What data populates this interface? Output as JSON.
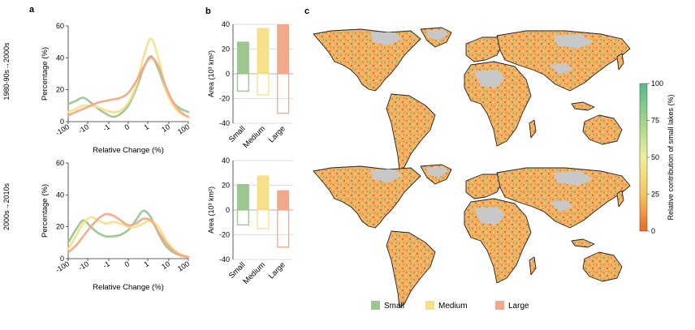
{
  "panel_labels": {
    "a": "a",
    "b": "b",
    "c": "c"
  },
  "colors": {
    "Small": "#9cc58f",
    "Medium": "#f7e08a",
    "Large": "#f2a98a",
    "land": "#f0b163",
    "low": "#e56a2c",
    "high": "#58b98c",
    "nodata": "#c8c8c8",
    "coast": "#222222"
  },
  "legend": {
    "items": [
      "Small",
      "Medium",
      "Large"
    ]
  },
  "colorbar": {
    "label": "Relative contribution of small lakes (%)",
    "ticks": [
      "100",
      "75",
      "50",
      "25",
      "0"
    ],
    "stops": [
      "#58b98c",
      "#9fd48a",
      "#eef09a",
      "#f6c560",
      "#e56a2c"
    ]
  },
  "chart_data": [
    {
      "type": "line",
      "id": "a-top",
      "row_label": "1980-90s→2000s",
      "xlabel": "Relative Change (%)",
      "ylabel": "Percentage (%)",
      "xticks": [
        "-100",
        "-10",
        "-1",
        "0",
        "1",
        "10",
        "100"
      ],
      "ylim": [
        0,
        60
      ],
      "yticks": [
        "0",
        "20",
        "40",
        "60"
      ],
      "x": [
        -4,
        -3.5,
        -3,
        -2.5,
        -2,
        -1.5,
        -1,
        -0.5,
        0,
        0.5,
        1,
        1.5,
        2,
        2.5,
        3,
        3.5,
        4
      ],
      "series": [
        {
          "name": "Small",
          "values": [
            11,
            13,
            15,
            12,
            8,
            5,
            3,
            5,
            10,
            20,
            33,
            41,
            33,
            20,
            12,
            8,
            6
          ]
        },
        {
          "name": "Medium",
          "values": [
            6,
            8,
            10,
            10,
            9,
            7,
            6,
            7,
            12,
            22,
            40,
            52,
            40,
            20,
            10,
            5,
            3
          ]
        },
        {
          "name": "Large",
          "values": [
            4,
            6,
            8,
            10,
            12,
            13,
            14,
            15,
            18,
            25,
            34,
            40,
            35,
            22,
            12,
            6,
            3
          ]
        }
      ]
    },
    {
      "type": "line",
      "id": "a-bottom",
      "row_label": "2000s→2010s",
      "xlabel": "Relative Change (%)",
      "ylabel": "Percentage (%)",
      "xticks": [
        "-100",
        "-10",
        "-1",
        "0",
        "1",
        "10",
        "100"
      ],
      "ylim": [
        0,
        60
      ],
      "yticks": [
        "0",
        "20",
        "40",
        "60"
      ],
      "x": [
        -4,
        -3.5,
        -3,
        -2.5,
        -2,
        -1.5,
        -1,
        -0.5,
        0,
        0.5,
        1,
        1.5,
        2,
        2.5,
        3,
        3.5,
        4
      ],
      "series": [
        {
          "name": "Small",
          "values": [
            10,
            18,
            24,
            20,
            16,
            14,
            14,
            15,
            18,
            24,
            30,
            26,
            16,
            8,
            4,
            2,
            1
          ]
        },
        {
          "name": "Medium",
          "values": [
            6,
            14,
            22,
            26,
            24,
            22,
            23,
            22,
            20,
            20,
            22,
            24,
            20,
            12,
            6,
            3,
            1
          ]
        },
        {
          "name": "Large",
          "values": [
            4,
            8,
            14,
            20,
            25,
            28,
            27,
            24,
            21,
            22,
            25,
            24,
            17,
            10,
            5,
            2,
            1
          ]
        }
      ]
    },
    {
      "type": "bar",
      "id": "b-top",
      "ylabel": "Area (10³ km²)",
      "categories": [
        "Small",
        "Medium",
        "Large"
      ],
      "ylim": [
        -40,
        40
      ],
      "yticks": [
        "-40",
        "-20",
        "0",
        "20",
        "40"
      ],
      "gain": [
        26,
        37,
        40
      ],
      "loss": [
        -14,
        -17,
        -32
      ]
    },
    {
      "type": "bar",
      "id": "b-bottom",
      "ylabel": "Area (10³ km²)",
      "categories": [
        "Small",
        "Medium",
        "Large"
      ],
      "ylim": [
        -40,
        40
      ],
      "yticks": [
        "-40",
        "-20",
        "0",
        "20",
        "40"
      ],
      "gain": [
        21,
        28,
        16
      ],
      "loss": [
        -12,
        -15,
        -30
      ]
    }
  ]
}
